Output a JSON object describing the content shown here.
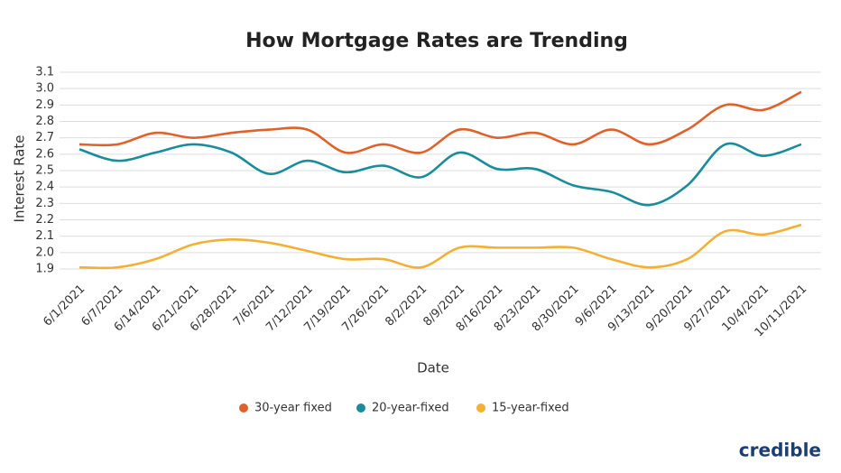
{
  "chart_data": {
    "type": "line",
    "title": "How Mortgage Rates are Trending",
    "y_label": "Interest Rate",
    "x_label": "Date",
    "categories": [
      "6/1/2021",
      "6/7/2021",
      "6/14/2021",
      "6/21/2021",
      "6/28/2021",
      "7/6/2021",
      "7/12/2021",
      "7/19/2021",
      "7/26/2021",
      "8/2/2021",
      "8/9/2021",
      "8/16/2021",
      "8/23/2021",
      "8/30/2021",
      "9/6/2021",
      "9/13/2021",
      "9/20/2021",
      "9/27/2021",
      "10/4/2021",
      "10/11/2021"
    ],
    "series": [
      {
        "name": "30-year fixed",
        "color": "#e0622a",
        "values": [
          2.66,
          2.66,
          2.73,
          2.7,
          2.73,
          2.75,
          2.75,
          2.61,
          2.66,
          2.61,
          2.75,
          2.7,
          2.73,
          2.66,
          2.75,
          2.66,
          2.75,
          2.9,
          2.87,
          2.98
        ]
      },
      {
        "name": "20-year-fixed",
        "color": "#1a8d9b",
        "values": [
          2.63,
          2.56,
          2.61,
          2.66,
          2.61,
          2.48,
          2.56,
          2.49,
          2.53,
          2.46,
          2.61,
          2.51,
          2.51,
          2.41,
          2.37,
          2.29,
          2.41,
          2.66,
          2.59,
          2.66
        ]
      },
      {
        "name": "15-year-fixed",
        "color": "#f2b035",
        "values": [
          1.91,
          1.91,
          1.96,
          2.05,
          2.08,
          2.06,
          2.01,
          1.96,
          1.96,
          1.91,
          2.03,
          2.03,
          2.03,
          2.03,
          1.96,
          1.91,
          1.96,
          2.13,
          2.11,
          2.17
        ]
      }
    ],
    "ylim": [
      1.9,
      3.1
    ],
    "yticks": [
      1.9,
      {
        "value": 2,
        "label": "2.0"
      },
      2.1,
      2.2,
      2.3,
      2.4,
      2.5,
      2.6,
      2.7,
      2.8,
      2.9,
      {
        "value": 3,
        "label": "3.0"
      },
      3.1
    ],
    "grid": true,
    "legend": "bottom"
  },
  "brand": "credible"
}
